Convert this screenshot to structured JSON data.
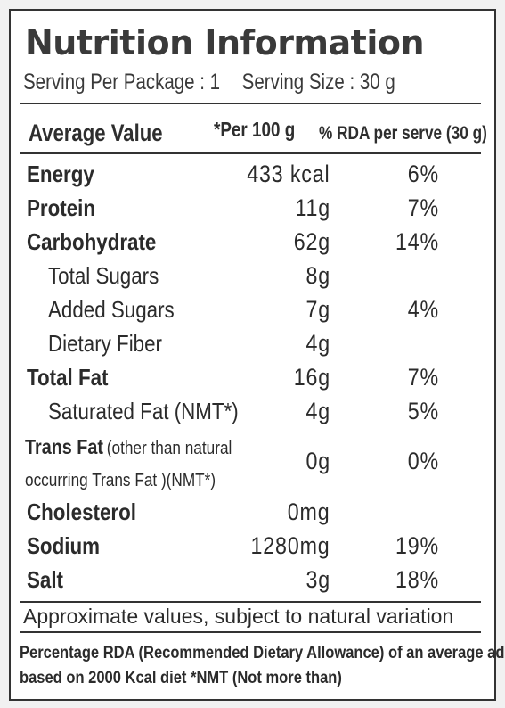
{
  "title": "Nutrition Information",
  "serving": {
    "per_package": "Serving Per Package : 1",
    "size": "Serving Size : 30 g"
  },
  "header": {
    "average_value": "Average Value",
    "per_100g": "*Per 100 g",
    "rda": "% RDA per serve (30 g)"
  },
  "rows": [
    {
      "name": "Energy",
      "value": "433 kcal",
      "rda": "6%"
    },
    {
      "name": "Protein",
      "value": "11g",
      "rda": "7%"
    },
    {
      "name": "Carbohydrate",
      "value": "62g",
      "rda": "14%"
    },
    {
      "name": "Total Sugars",
      "value": "8g",
      "rda": ""
    },
    {
      "name": "Added Sugars",
      "value": "7g",
      "rda": "4%"
    },
    {
      "name": "Dietary Fiber",
      "value": "4g",
      "rda": ""
    },
    {
      "name": "Total Fat",
      "value": "16g",
      "rda": "7%"
    },
    {
      "name": "Saturated Fat (NMT*)",
      "value": "4g",
      "rda": "5%"
    },
    {
      "name": "Trans Fat",
      "note_line1": "(other than natural",
      "note_line2": "occurring Trans Fat )(NMT*)",
      "value": "0g",
      "rda": "0%"
    },
    {
      "name": "Cholesterol",
      "value": "0mg",
      "rda": ""
    },
    {
      "name": "Sodium",
      "value": "1280mg",
      "rda": "19%"
    },
    {
      "name": "Salt",
      "value": "3g",
      "rda": "18%"
    }
  ],
  "footer": {
    "approx": "Approximate values, subject to natural variation",
    "rda_line1": "Percentage RDA (Recommended Dietary Allowance) of an average adult",
    "rda_line2": "based on 2000 Kcal diet  *NMT (Not more than)"
  }
}
